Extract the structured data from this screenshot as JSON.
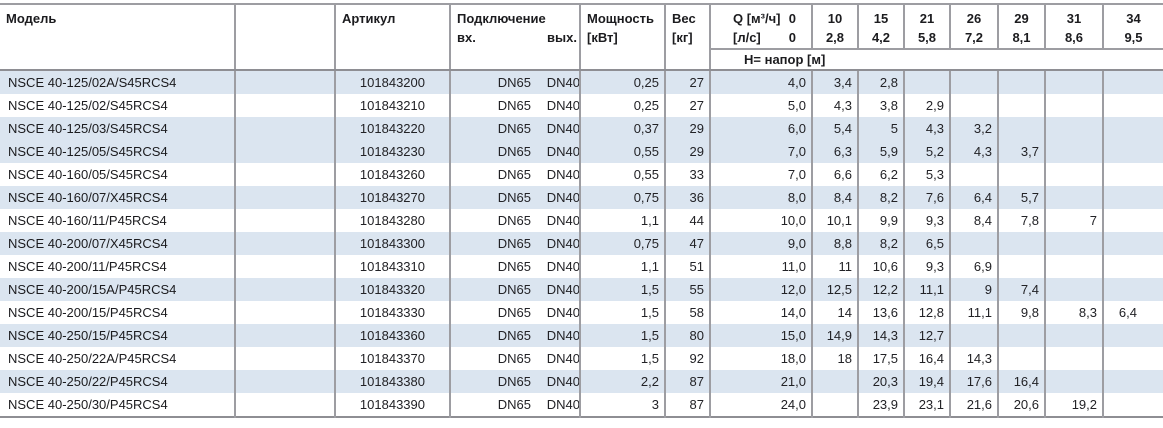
{
  "colors": {
    "stripe": "#dbe5f0",
    "border": "#9d9da2",
    "border_heavy": "#8e8e93",
    "text": "#222226"
  },
  "table": {
    "headers": {
      "model": "Модель",
      "article": "Артикул",
      "connection": "Подключение",
      "connection_in": "вх.",
      "connection_out": "вых.",
      "power_line1": "Мощность",
      "power_line2": "[кВт]",
      "weight_line1": "Вес",
      "weight_line2": "[кг]",
      "q_row1_label": "Q [м³/ч]",
      "q_row1_value": "0",
      "q_row2_label": "[л/с]",
      "q_row2_value": "0",
      "head_label": "H= напор [м]",
      "flow_columns": [
        {
          "m3h": "10",
          "ls": "2,8"
        },
        {
          "m3h": "15",
          "ls": "4,2"
        },
        {
          "m3h": "21",
          "ls": "5,8"
        },
        {
          "m3h": "26",
          "ls": "7,2"
        },
        {
          "m3h": "29",
          "ls": "8,1"
        },
        {
          "m3h": "31",
          "ls": "8,6"
        },
        {
          "m3h": "34",
          "ls": "9,5"
        }
      ]
    },
    "shaded_rows": [
      0,
      2,
      3,
      5,
      7,
      9,
      11,
      13
    ],
    "rows": [
      {
        "model": "NSCE 40-125/02A/S45RCS4",
        "article": "101843200",
        "conn_in": "DN65",
        "conn_out": "DN40",
        "power": "0,25",
        "weight": "27",
        "q": [
          "4,0",
          "3,4",
          "2,8",
          "",
          "",
          "",
          "",
          ""
        ]
      },
      {
        "model": "NSCE 40-125/02/S45RCS4",
        "article": "101843210",
        "conn_in": "DN65",
        "conn_out": "DN40",
        "power": "0,25",
        "weight": "27",
        "q": [
          "5,0",
          "4,3",
          "3,8",
          "2,9",
          "",
          "",
          "",
          ""
        ]
      },
      {
        "model": "NSCE 40-125/03/S45RCS4",
        "article": "101843220",
        "conn_in": "DN65",
        "conn_out": "DN40",
        "power": "0,37",
        "weight": "29",
        "q": [
          "6,0",
          "5,4",
          "5",
          "4,3",
          "3,2",
          "",
          "",
          ""
        ]
      },
      {
        "model": "NSCE 40-125/05/S45RCS4",
        "article": "101843230",
        "conn_in": "DN65",
        "conn_out": "DN40",
        "power": "0,55",
        "weight": "29",
        "q": [
          "7,0",
          "6,3",
          "5,9",
          "5,2",
          "4,3",
          "3,7",
          "",
          ""
        ]
      },
      {
        "model": "NSCE 40-160/05/S45RCS4",
        "article": "101843260",
        "conn_in": "DN65",
        "conn_out": "DN40",
        "power": "0,55",
        "weight": "33",
        "q": [
          "7,0",
          "6,6",
          "6,2",
          "5,3",
          "",
          "",
          "",
          ""
        ]
      },
      {
        "model": "NSCE 40-160/07/X45RCS4",
        "article": "101843270",
        "conn_in": "DN65",
        "conn_out": "DN40",
        "power": "0,75",
        "weight": "36",
        "q": [
          "8,0",
          "8,4",
          "8,2",
          "7,6",
          "6,4",
          "5,7",
          "",
          ""
        ]
      },
      {
        "model": "NSCE 40-160/11/P45RCS4",
        "article": "101843280",
        "conn_in": "DN65",
        "conn_out": "DN40",
        "power": "1,1",
        "weight": "44",
        "q": [
          "10,0",
          "10,1",
          "9,9",
          "9,3",
          "8,4",
          "7,8",
          "7",
          ""
        ]
      },
      {
        "model": "NSCE 40-200/07/X45RCS4",
        "article": "101843300",
        "conn_in": "DN65",
        "conn_out": "DN40",
        "power": "0,75",
        "weight": "47",
        "q": [
          "9,0",
          "8,8",
          "8,2",
          "6,5",
          "",
          "",
          "",
          ""
        ]
      },
      {
        "model": "NSCE 40-200/11/P45RCS4",
        "article": "101843310",
        "conn_in": "DN65",
        "conn_out": "DN40",
        "power": "1,1",
        "weight": "51",
        "q": [
          "11,0",
          "11",
          "10,6",
          "9,3",
          "6,9",
          "",
          "",
          ""
        ]
      },
      {
        "model": "NSCE 40-200/15A/P45RCS4",
        "article": "101843320",
        "conn_in": "DN65",
        "conn_out": "DN40",
        "power": "1,5",
        "weight": "55",
        "q": [
          "12,0",
          "12,5",
          "12,2",
          "11,1",
          "9",
          "7,4",
          "",
          ""
        ]
      },
      {
        "model": "NSCE 40-200/15/P45RCS4",
        "article": "101843330",
        "conn_in": "DN65",
        "conn_out": "DN40",
        "power": "1,5",
        "weight": "58",
        "q": [
          "14,0",
          "14",
          "13,6",
          "12,8",
          "11,1",
          "9,8",
          "8,3",
          "6,4"
        ]
      },
      {
        "model": "NSCE 40-250/15/P45RCS4",
        "article": "101843360",
        "conn_in": "DN65",
        "conn_out": "DN40",
        "power": "1,5",
        "weight": "80",
        "q": [
          "15,0",
          "14,9",
          "14,3",
          "12,7",
          "",
          "",
          "",
          ""
        ]
      },
      {
        "model": "NSCE 40-250/22A/P45RCS4",
        "article": "101843370",
        "conn_in": "DN65",
        "conn_out": "DN40",
        "power": "1,5",
        "weight": "92",
        "q": [
          "18,0",
          "18",
          "17,5",
          "16,4",
          "14,3",
          "",
          "",
          ""
        ]
      },
      {
        "model": "NSCE 40-250/22/P45RCS4",
        "article": "101843380",
        "conn_in": "DN65",
        "conn_out": "DN40",
        "power": "2,2",
        "weight": "87",
        "q": [
          "21,0",
          "",
          "20,3",
          "19,4",
          "17,6",
          "16,4",
          "",
          ""
        ]
      },
      {
        "model": "NSCE 40-250/30/P45RCS4",
        "article": "101843390",
        "conn_in": "DN65",
        "conn_out": "DN40",
        "power": "3",
        "weight": "87",
        "q": [
          "24,0",
          "",
          "23,9",
          "23,1",
          "21,6",
          "20,6",
          "19,2",
          ""
        ]
      }
    ]
  }
}
